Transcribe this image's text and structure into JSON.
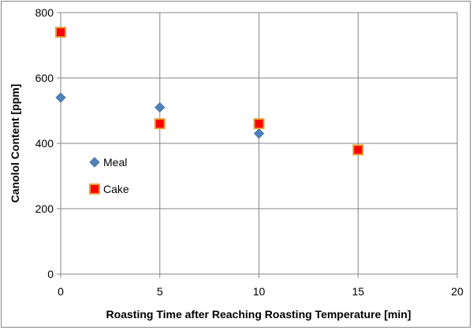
{
  "chart_data": {
    "type": "scatter",
    "xlabel": "Roasting Time after Reaching Roasting Temperature [min]",
    "ylabel": "Canolol Content [ppm]",
    "xlim": [
      0,
      20
    ],
    "ylim": [
      0,
      800
    ],
    "xticks": [
      0,
      5,
      10,
      15,
      20
    ],
    "yticks": [
      0,
      200,
      400,
      600,
      800
    ],
    "grid": true,
    "legend_position": "left-center",
    "series": [
      {
        "name": "Meal",
        "marker": "diamond",
        "color": "#4F81BD",
        "x": [
          0,
          5,
          10
        ],
        "y": [
          540,
          510,
          430
        ]
      },
      {
        "name": "Cake",
        "marker": "square",
        "color": "#FF0000",
        "edge_color": "#E6A23C",
        "x": [
          0,
          5,
          10,
          15
        ],
        "y": [
          740,
          460,
          460,
          380
        ]
      }
    ]
  }
}
